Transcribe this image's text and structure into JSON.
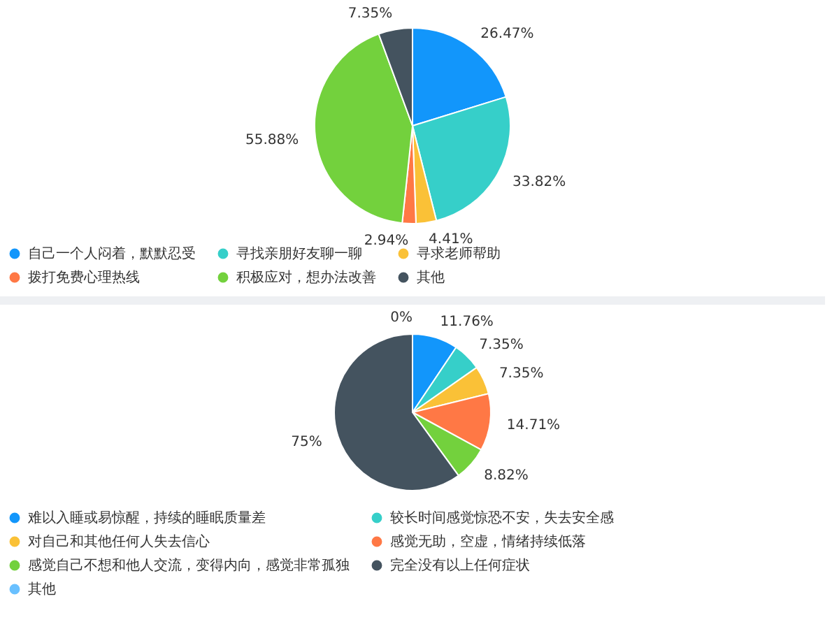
{
  "chart_data": [
    {
      "type": "pie",
      "categories": [
        "自己一个人闷着，默默忍受",
        "寻找亲朋好友聊一聊",
        "寻求老师帮助",
        "拨打免费心理热线",
        "积极应对，想办法改善",
        "其他"
      ],
      "values": [
        26.47,
        33.82,
        4.41,
        2.94,
        55.88,
        7.35
      ],
      "colors": [
        "#1296fb",
        "#36cfc9",
        "#fac137",
        "#ff7845",
        "#73d13d",
        "#44535f"
      ],
      "value_labels": [
        "26.47%",
        "33.82%",
        "4.41%",
        "2.94%",
        "55.88%",
        "7.35%"
      ],
      "legend": "bottom"
    },
    {
      "type": "pie",
      "categories": [
        "难以入睡或易惊醒，持续的睡眠质量差",
        "较长时间感觉惊恐不安，失去安全感",
        "对自己和其他任何人失去信心",
        "感觉无助，空虚，情绪持续低落",
        "感觉自己不想和他人交流，变得内向，感觉非常孤独",
        "完全没有以上任何症状",
        "其他"
      ],
      "values": [
        11.76,
        7.35,
        7.35,
        14.71,
        8.82,
        75,
        0
      ],
      "colors": [
        "#1296fb",
        "#36cfc9",
        "#fac137",
        "#ff7845",
        "#73d13d",
        "#44535f",
        "#69c0ff"
      ],
      "value_labels": [
        "11.76%",
        "7.35%",
        "7.35%",
        "14.71%",
        "8.82%",
        "75%",
        "0%"
      ],
      "legend": "bottom"
    }
  ]
}
